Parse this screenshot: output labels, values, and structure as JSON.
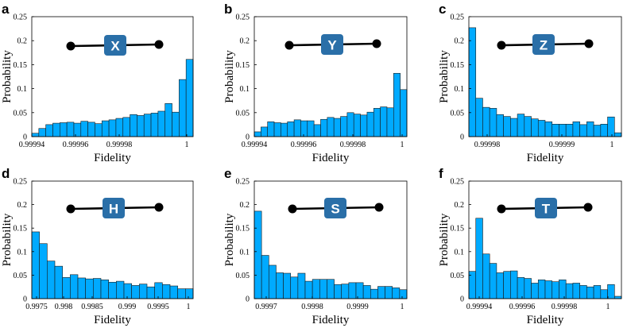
{
  "colors": {
    "bar": "#00aaff",
    "bar_edge": "#1a1a1a",
    "gate_box": "#2a6fa8",
    "gate_text": "#ffffff",
    "wire": "#000000"
  },
  "chart_data": [
    {
      "type": "bar",
      "panel": "a",
      "gate": "X",
      "xlabel": "Fidelity",
      "ylabel": "Probability",
      "ylim": [
        0,
        0.25
      ],
      "y_ticks": [
        "0",
        "0.05",
        "0.1",
        "0.15",
        "0.2",
        "0.25"
      ],
      "x_ticks": [
        "0.99994",
        "0.99996",
        "0.99998",
        "1"
      ],
      "values": [
        0.007,
        0.017,
        0.025,
        0.028,
        0.029,
        0.03,
        0.028,
        0.032,
        0.03,
        0.027,
        0.033,
        0.035,
        0.038,
        0.04,
        0.046,
        0.044,
        0.047,
        0.049,
        0.053,
        0.069,
        0.051,
        0.119,
        0.161
      ],
      "grid": false
    },
    {
      "type": "bar",
      "panel": "b",
      "gate": "Y",
      "xlabel": "Fidelity",
      "ylabel": "Probability",
      "ylim": [
        0,
        0.25
      ],
      "y_ticks": [
        "0",
        "0.05",
        "0.1",
        "0.15",
        "0.2",
        "0.25"
      ],
      "x_ticks": [
        "0.99994",
        "0.99996",
        "0.99998",
        "1"
      ],
      "values": [
        0.01,
        0.02,
        0.031,
        0.029,
        0.028,
        0.031,
        0.035,
        0.033,
        0.033,
        0.025,
        0.036,
        0.04,
        0.038,
        0.042,
        0.05,
        0.047,
        0.045,
        0.051,
        0.059,
        0.062,
        0.06,
        0.132,
        0.098
      ],
      "grid": false
    },
    {
      "type": "bar",
      "panel": "c",
      "gate": "Z",
      "xlabel": "Fidelity",
      "ylabel": "Probability",
      "ylim": [
        0,
        0.25
      ],
      "y_ticks": [
        "0",
        "0.05",
        "0.1",
        "0.15",
        "0.2",
        "0.25"
      ],
      "x_ticks": [
        "0.99998",
        "0.99999",
        "1"
      ],
      "values": [
        0.227,
        0.08,
        0.061,
        0.059,
        0.046,
        0.042,
        0.038,
        0.047,
        0.042,
        0.037,
        0.034,
        0.031,
        0.026,
        0.026,
        0.026,
        0.031,
        0.025,
        0.031,
        0.024,
        0.026,
        0.041,
        0.008
      ],
      "grid": false
    },
    {
      "type": "bar",
      "panel": "d",
      "gate": "H",
      "xlabel": "Fidelity",
      "ylabel": "Probability",
      "ylim": [
        0,
        0.25
      ],
      "y_ticks": [
        "0",
        "0.05",
        "0.1",
        "0.15",
        "0.2",
        "0.25"
      ],
      "x_ticks": [
        "0.9975",
        "0.998",
        "0.9985",
        "0.999",
        "0.9995",
        "1"
      ],
      "values": [
        0.142,
        0.117,
        0.08,
        0.069,
        0.045,
        0.051,
        0.044,
        0.042,
        0.043,
        0.04,
        0.035,
        0.037,
        0.032,
        0.028,
        0.031,
        0.025,
        0.034,
        0.03,
        0.027,
        0.021,
        0.021
      ],
      "grid": false
    },
    {
      "type": "bar",
      "panel": "e",
      "gate": "S",
      "xlabel": "Fidelity",
      "ylabel": "Probability",
      "ylim": [
        0,
        0.25
      ],
      "y_ticks": [
        "0",
        "0.05",
        "0.1",
        "0.15",
        "0.2",
        "0.25"
      ],
      "x_ticks": [
        "0.9997",
        "0.9998",
        "0.9999",
        "1"
      ],
      "values": [
        0.186,
        0.092,
        0.071,
        0.055,
        0.054,
        0.046,
        0.054,
        0.037,
        0.041,
        0.041,
        0.041,
        0.03,
        0.031,
        0.034,
        0.034,
        0.028,
        0.02,
        0.026,
        0.026,
        0.023,
        0.019
      ],
      "grid": false
    },
    {
      "type": "bar",
      "panel": "f",
      "gate": "T",
      "xlabel": "Fidelity",
      "ylabel": "Probability",
      "ylim": [
        0,
        0.25
      ],
      "y_ticks": [
        "0",
        "0.05",
        "0.1",
        "0.15",
        "0.2",
        "0.25"
      ],
      "x_ticks": [
        "0.99994",
        "0.99996",
        "0.99998",
        "1"
      ],
      "values": [
        0.058,
        0.171,
        0.095,
        0.075,
        0.055,
        0.058,
        0.059,
        0.045,
        0.043,
        0.033,
        0.04,
        0.038,
        0.036,
        0.04,
        0.032,
        0.033,
        0.028,
        0.025,
        0.028,
        0.019,
        0.03,
        0.005
      ],
      "grid": false
    }
  ]
}
